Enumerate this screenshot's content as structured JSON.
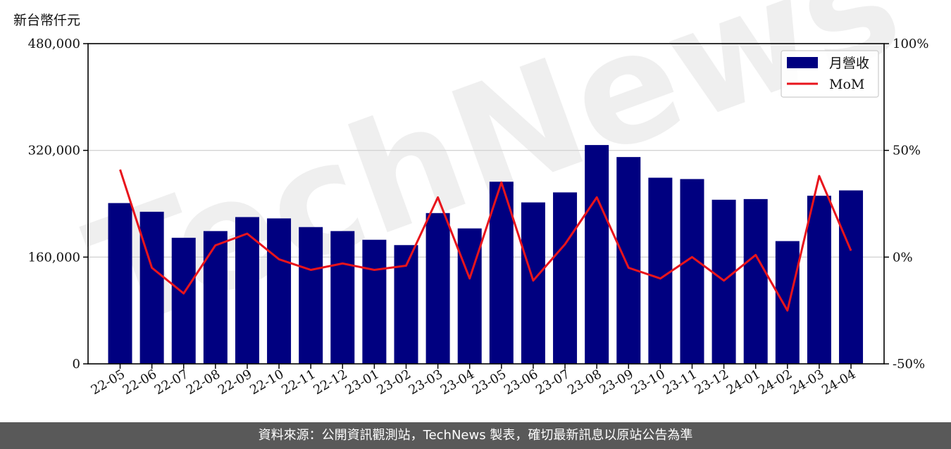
{
  "unit_label": "新台幣仟元",
  "footer_text": "資料來源：公開資訊觀測站，TechNews 製表，確切最新訊息以原站公告為準",
  "watermark_text": "TechNews",
  "chart_data": {
    "type": "bar",
    "categories": [
      "22-05",
      "22-06",
      "22-07",
      "22-08",
      "22-09",
      "22-10",
      "22-11",
      "22-12",
      "23-01",
      "23-02",
      "23-03",
      "23-04",
      "23-05",
      "23-06",
      "23-07",
      "23-08",
      "23-09",
      "23-10",
      "23-11",
      "23-12",
      "24-01",
      "24-02",
      "24-03",
      "24-04"
    ],
    "series": [
      {
        "name": "月營收",
        "kind": "bar",
        "axis": "left",
        "color": "#000080",
        "values": [
          241000,
          228000,
          189000,
          199000,
          220000,
          218000,
          205000,
          199000,
          186000,
          178000,
          226000,
          203000,
          273000,
          242000,
          257000,
          328000,
          310000,
          279000,
          277000,
          246000,
          247000,
          184000,
          252000,
          260000
        ]
      },
      {
        "name": "MoM",
        "kind": "line",
        "axis": "right",
        "color": "#e8141c",
        "values": [
          41,
          -5,
          -17,
          5.5,
          11,
          -1,
          -6,
          -3,
          -6,
          -4,
          28,
          -10,
          35,
          -11,
          6,
          28,
          -5,
          -10,
          0,
          -11,
          1,
          -25,
          38,
          3
        ]
      }
    ],
    "left_axis": {
      "range": [
        0,
        480000
      ],
      "ticks": [
        "0",
        "160,000",
        "320,000",
        "480,000"
      ],
      "tick_values": [
        0,
        160000,
        320000,
        480000
      ]
    },
    "right_axis": {
      "range": [
        -50,
        100
      ],
      "ticks": [
        "-50%",
        "0%",
        "50%",
        "100%"
      ],
      "tick_values": [
        -50,
        0,
        50,
        100
      ]
    },
    "grid": "horizontal",
    "legend_position": "top-right"
  }
}
